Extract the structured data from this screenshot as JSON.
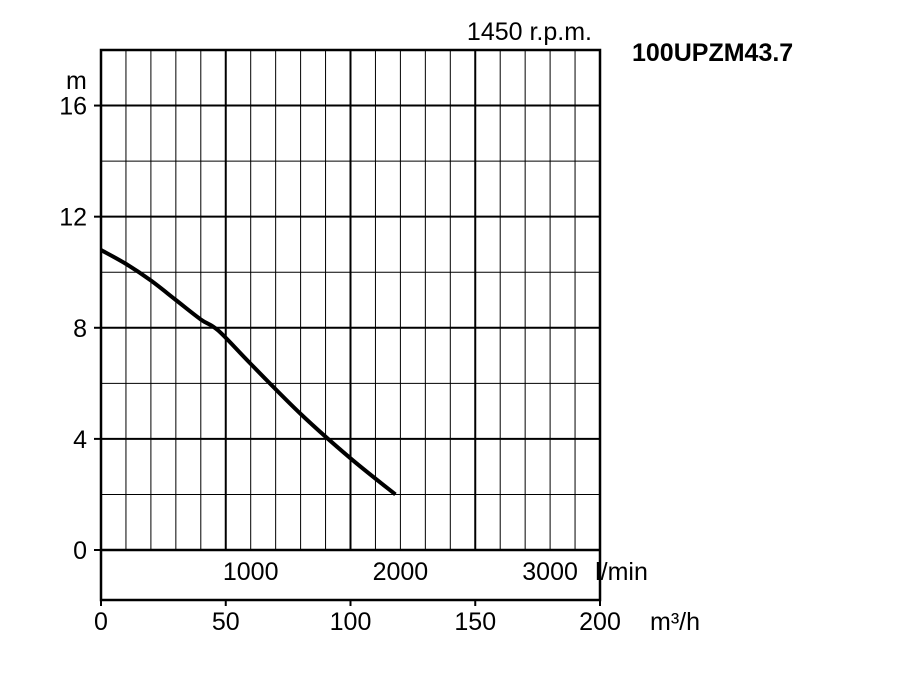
{
  "chart_data": {
    "type": "line",
    "title": "100UPZM43.7",
    "subtitle": "1450 r.p.m.",
    "ylabel": "m",
    "xlabel": "m³/h",
    "secondary_xlabel": "l/min",
    "x_ticks": [
      "0",
      "50",
      "100",
      "150",
      "200"
    ],
    "y_ticks": [
      "0",
      "4",
      "8",
      "12",
      "16"
    ],
    "secondary_x_ticks": [
      "1000",
      "2000",
      "3000"
    ],
    "xlim": [
      0,
      200
    ],
    "ylim": [
      0,
      18
    ],
    "grid": true,
    "series": [
      {
        "color": "#000000",
        "x": [
          0,
          10,
          20,
          30,
          40,
          47,
          60,
          80,
          100,
          118
        ],
        "y": [
          10.8,
          10.3,
          9.7,
          9.0,
          8.3,
          7.9,
          6.7,
          4.9,
          3.3,
          2.0
        ]
      }
    ]
  }
}
